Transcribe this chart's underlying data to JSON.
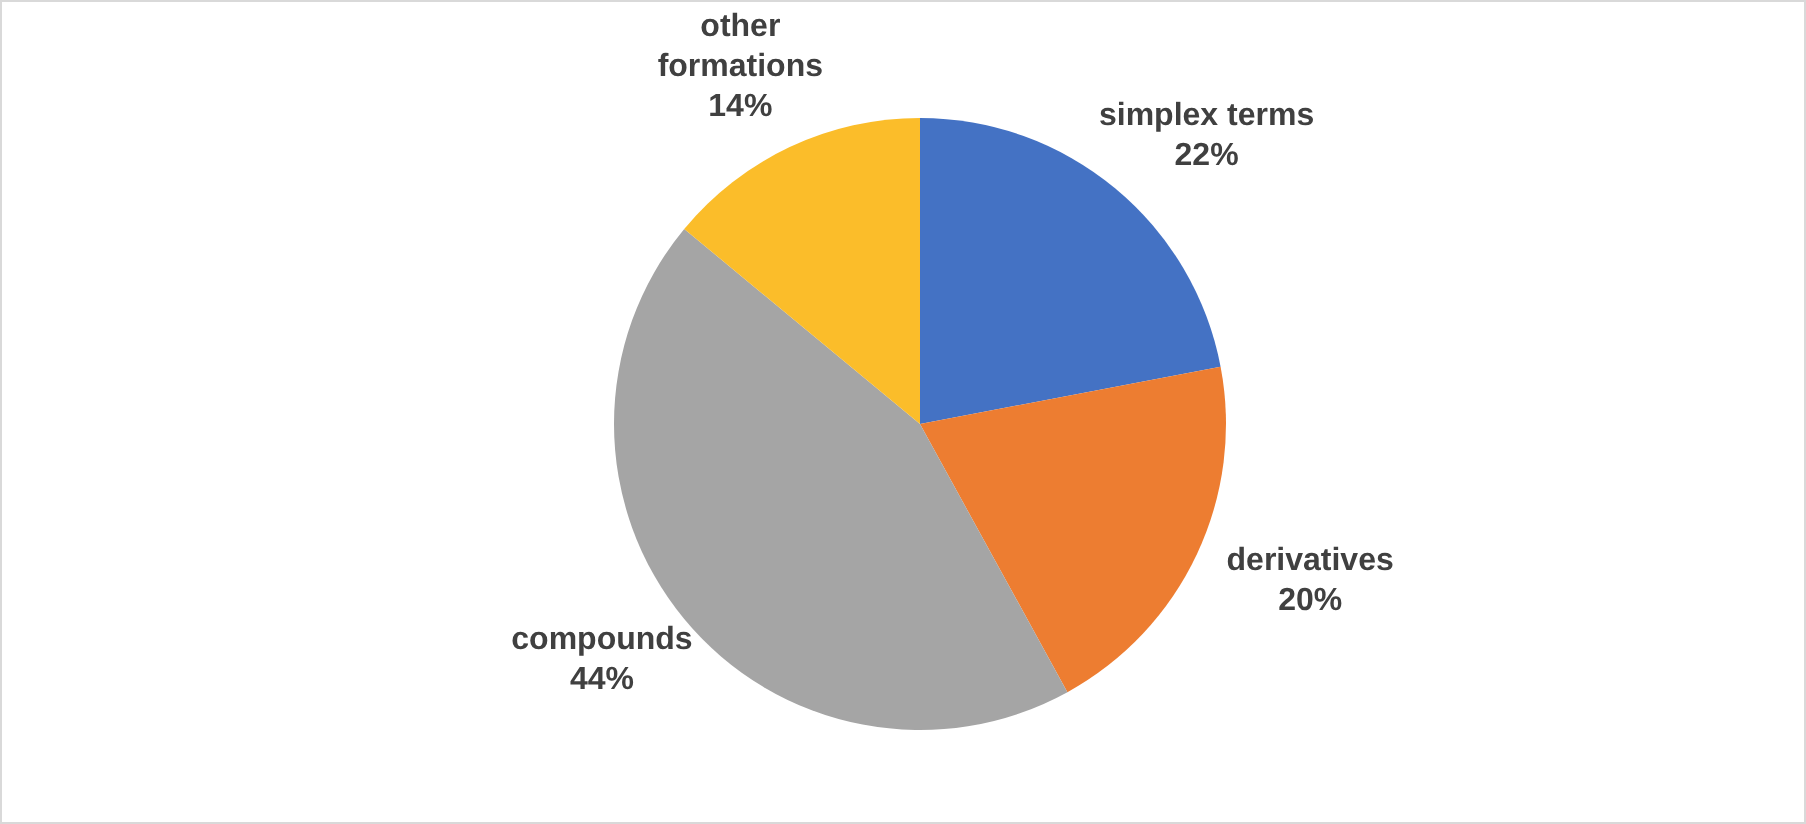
{
  "chart_data": {
    "type": "pie",
    "categories": [
      "simplex terms",
      "derivatives",
      "compounds",
      "other formations"
    ],
    "values": [
      22,
      20,
      44,
      14
    ],
    "value_labels": [
      "22%",
      "20%",
      "44%",
      "14%"
    ],
    "colors": [
      "#4472c4",
      "#ed7d31",
      "#a5a5a5",
      "#fbbd2a"
    ]
  }
}
